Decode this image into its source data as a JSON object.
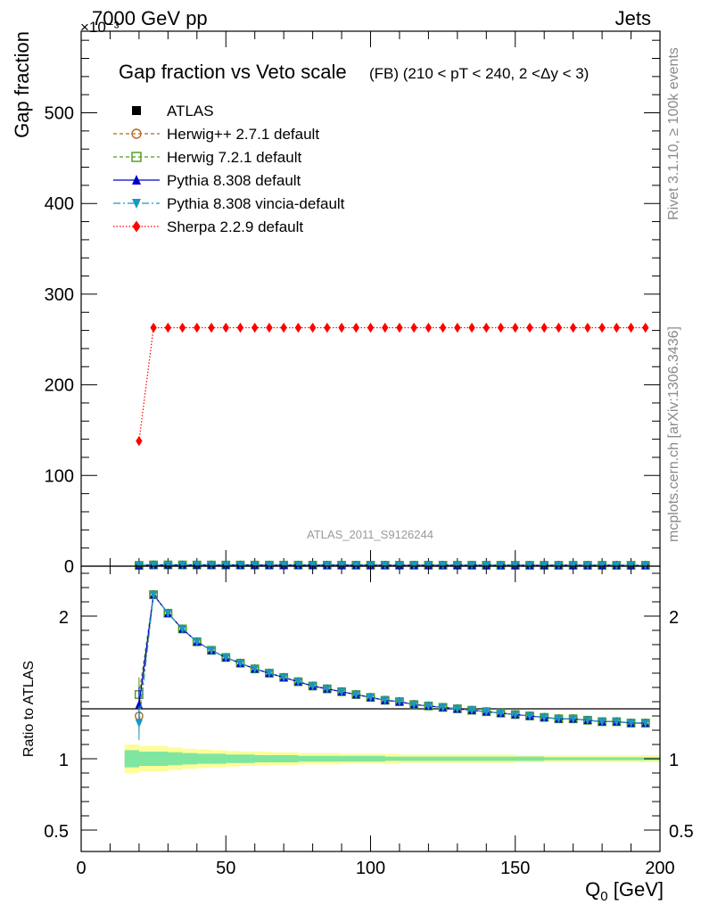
{
  "header": {
    "energy_label": "7000 GeV pp",
    "process_label": "Jets",
    "y_multiplier": "×10⁻³"
  },
  "side_labels": {
    "rivet": "Rivet 3.1.10, ≥ 100k events",
    "mcplots": "mcplots.cern.ch [arXiv:1306.3436]"
  },
  "chart_data": [
    {
      "type": "line",
      "title": "Gap fraction vs Veto scale",
      "subtitle": "(FB) (210 < pT < 240, 2 <Δy < 3)",
      "ylabel": "Gap fraction",
      "xlabel": "",
      "analysis_tag": "ATLAS_2011_S9126244",
      "xlim": [
        0,
        200
      ],
      "ylim": [
        0,
        590
      ],
      "yticks": [
        0,
        100,
        200,
        300,
        400,
        500
      ],
      "x": [
        20,
        25,
        30,
        35,
        40,
        45,
        50,
        55,
        60,
        65,
        70,
        75,
        80,
        85,
        90,
        95,
        100,
        105,
        110,
        115,
        120,
        125,
        130,
        135,
        140,
        145,
        150,
        155,
        160,
        165,
        170,
        175,
        180,
        185,
        190,
        195
      ],
      "legend_position": "top-left",
      "series": [
        {
          "name": "ATLAS",
          "color": "#000000",
          "marker": "square-filled",
          "dash": "none",
          "values": [
            0.6,
            0.65,
            0.7,
            0.7,
            0.72,
            0.72,
            0.74,
            0.74,
            0.75,
            0.75,
            0.75,
            0.76,
            0.76,
            0.76,
            0.77,
            0.77,
            0.77,
            0.77,
            0.77,
            0.78,
            0.78,
            0.78,
            0.78,
            0.78,
            0.78,
            0.78,
            0.79,
            0.79,
            0.79,
            0.79,
            0.79,
            0.79,
            0.79,
            0.79,
            0.79,
            0.79
          ]
        },
        {
          "name": "Herwig++ 2.7.1 default",
          "color": "#b8671a",
          "marker": "circle-open",
          "dash": "4,3",
          "values": [
            0.8,
            1.4,
            1.4,
            1.35,
            1.3,
            1.28,
            1.26,
            1.23,
            1.2,
            1.18,
            1.16,
            1.14,
            1.12,
            1.1,
            1.09,
            1.08,
            1.07,
            1.06,
            1.05,
            1.04,
            1.03,
            1.02,
            1.01,
            1.0,
            0.99,
            0.98,
            0.98,
            0.97,
            0.97,
            0.96,
            0.96,
            0.95,
            0.95,
            0.95,
            0.94,
            0.94
          ]
        },
        {
          "name": "Herwig 7.2.1 default",
          "color": "#4a9a1a",
          "marker": "square-open",
          "dash": "4,3",
          "values": [
            0.85,
            1.4,
            1.4,
            1.35,
            1.3,
            1.28,
            1.26,
            1.23,
            1.2,
            1.18,
            1.16,
            1.14,
            1.12,
            1.1,
            1.09,
            1.08,
            1.07,
            1.06,
            1.05,
            1.04,
            1.03,
            1.02,
            1.01,
            1.0,
            0.99,
            0.98,
            0.98,
            0.97,
            0.97,
            0.96,
            0.96,
            0.95,
            0.95,
            0.95,
            0.94,
            0.94
          ]
        },
        {
          "name": "Pythia 8.308 default",
          "color": "#0000cc",
          "marker": "triangle-up",
          "dash": "none",
          "values": [
            0.82,
            1.4,
            1.4,
            1.35,
            1.3,
            1.28,
            1.26,
            1.23,
            1.2,
            1.18,
            1.16,
            1.14,
            1.12,
            1.1,
            1.09,
            1.08,
            1.07,
            1.06,
            1.05,
            1.04,
            1.03,
            1.02,
            1.01,
            1.0,
            0.99,
            0.98,
            0.98,
            0.97,
            0.97,
            0.96,
            0.96,
            0.95,
            0.95,
            0.95,
            0.94,
            0.94
          ]
        },
        {
          "name": "Pythia 8.308 vincia-default",
          "color": "#1899c0",
          "marker": "triangle-down",
          "dash": "8,3,2,3",
          "values": [
            0.78,
            1.4,
            1.4,
            1.35,
            1.3,
            1.28,
            1.26,
            1.23,
            1.2,
            1.18,
            1.16,
            1.14,
            1.12,
            1.1,
            1.09,
            1.08,
            1.07,
            1.06,
            1.05,
            1.04,
            1.03,
            1.02,
            1.01,
            1.0,
            0.99,
            0.98,
            0.98,
            0.97,
            0.97,
            0.96,
            0.96,
            0.95,
            0.95,
            0.95,
            0.94,
            0.94
          ]
        },
        {
          "name": "Sherpa 2.2.9 default",
          "color": "#ff0000",
          "marker": "diamond",
          "dash": "1.5,2",
          "values": [
            138,
            263,
            263,
            263,
            263,
            263,
            263,
            263,
            263,
            263,
            263,
            263,
            263,
            263,
            263,
            263,
            263,
            263,
            263,
            263,
            263,
            263,
            263,
            263,
            263,
            263,
            263,
            263,
            263,
            263,
            263,
            263,
            263,
            263,
            263,
            263
          ]
        }
      ]
    },
    {
      "type": "line",
      "title": "",
      "ylabel": "Ratio to ATLAS",
      "xlabel": "Q_0 [GeV]",
      "xlim": [
        0,
        200
      ],
      "ylim": [
        0.35,
        2.35
      ],
      "yticks": [
        0.5,
        1,
        2
      ],
      "xticks": [
        0,
        50,
        100,
        150,
        200
      ],
      "reference_band": {
        "x": [
          17.5,
          22.5,
          27.5,
          32.5,
          37.5,
          42.5,
          47.5,
          52.5,
          57.5,
          62.5,
          67.5,
          72.5,
          77.5,
          82.5,
          87.5,
          92.5,
          97.5,
          102.5,
          107.5,
          112.5,
          117.5,
          122.5,
          127.5,
          132.5,
          137.5,
          142.5,
          147.5,
          152.5,
          157.5,
          162.5,
          167.5,
          172.5,
          177.5,
          182.5,
          187.5,
          192.5,
          197.5
        ],
        "stat_half_width": [
          0.06,
          0.05,
          0.05,
          0.045,
          0.04,
          0.035,
          0.035,
          0.03,
          0.03,
          0.025,
          0.025,
          0.025,
          0.02,
          0.02,
          0.02,
          0.02,
          0.02,
          0.02,
          0.015,
          0.015,
          0.015,
          0.015,
          0.015,
          0.015,
          0.015,
          0.015,
          0.015,
          0.015,
          0.015,
          0.01,
          0.01,
          0.01,
          0.01,
          0.01,
          0.01,
          0.01,
          0.01
        ],
        "total_half_width": [
          0.1,
          0.09,
          0.09,
          0.08,
          0.07,
          0.065,
          0.06,
          0.055,
          0.05,
          0.05,
          0.045,
          0.045,
          0.04,
          0.04,
          0.04,
          0.035,
          0.035,
          0.035,
          0.035,
          0.03,
          0.03,
          0.03,
          0.03,
          0.03,
          0.03,
          0.03,
          0.03,
          0.025,
          0.025,
          0.025,
          0.025,
          0.025,
          0.025,
          0.025,
          0.025,
          0.025,
          0.025
        ],
        "stat_color": "#7fe6a0",
        "total_color": "#fdfd9a"
      },
      "series": [
        {
          "name": "Herwig++ 2.7.1 default",
          "color": "#b8671a",
          "marker": "circle-open",
          "dash": "4,3",
          "values": [
            1.3,
            2.15,
            2.02,
            1.91,
            1.82,
            1.76,
            1.71,
            1.67,
            1.63,
            1.6,
            1.57,
            1.54,
            1.51,
            1.49,
            1.47,
            1.45,
            1.43,
            1.41,
            1.4,
            1.38,
            1.37,
            1.36,
            1.35,
            1.34,
            1.33,
            1.32,
            1.31,
            1.3,
            1.29,
            1.28,
            1.28,
            1.27,
            1.26,
            1.26,
            1.25,
            1.25
          ]
        },
        {
          "name": "Herwig 7.2.1 default",
          "color": "#4a9a1a",
          "marker": "square-open",
          "dash": "4,3",
          "values": [
            1.45,
            2.15,
            2.02,
            1.91,
            1.82,
            1.76,
            1.71,
            1.67,
            1.63,
            1.6,
            1.57,
            1.54,
            1.51,
            1.49,
            1.47,
            1.45,
            1.43,
            1.41,
            1.4,
            1.38,
            1.37,
            1.36,
            1.35,
            1.34,
            1.33,
            1.32,
            1.31,
            1.3,
            1.29,
            1.28,
            1.28,
            1.27,
            1.26,
            1.26,
            1.25,
            1.25
          ]
        },
        {
          "name": "Pythia 8.308 default",
          "color": "#0000cc",
          "marker": "triangle-up",
          "dash": "none",
          "values": [
            1.38,
            2.15,
            2.02,
            1.91,
            1.82,
            1.76,
            1.71,
            1.67,
            1.63,
            1.6,
            1.57,
            1.54,
            1.51,
            1.49,
            1.47,
            1.45,
            1.43,
            1.41,
            1.4,
            1.38,
            1.37,
            1.36,
            1.35,
            1.34,
            1.33,
            1.32,
            1.31,
            1.3,
            1.29,
            1.28,
            1.28,
            1.27,
            1.26,
            1.26,
            1.25,
            1.25
          ]
        },
        {
          "name": "Pythia 8.308 vincia-default",
          "color": "#1899c0",
          "marker": "triangle-down",
          "dash": "8,3,2,3",
          "values": [
            1.25,
            2.15,
            2.02,
            1.91,
            1.82,
            1.76,
            1.71,
            1.67,
            1.63,
            1.6,
            1.57,
            1.54,
            1.51,
            1.49,
            1.47,
            1.45,
            1.43,
            1.41,
            1.4,
            1.38,
            1.37,
            1.36,
            1.35,
            1.34,
            1.33,
            1.32,
            1.31,
            1.3,
            1.29,
            1.28,
            1.28,
            1.27,
            1.26,
            1.26,
            1.25,
            1.25
          ]
        }
      ]
    }
  ]
}
